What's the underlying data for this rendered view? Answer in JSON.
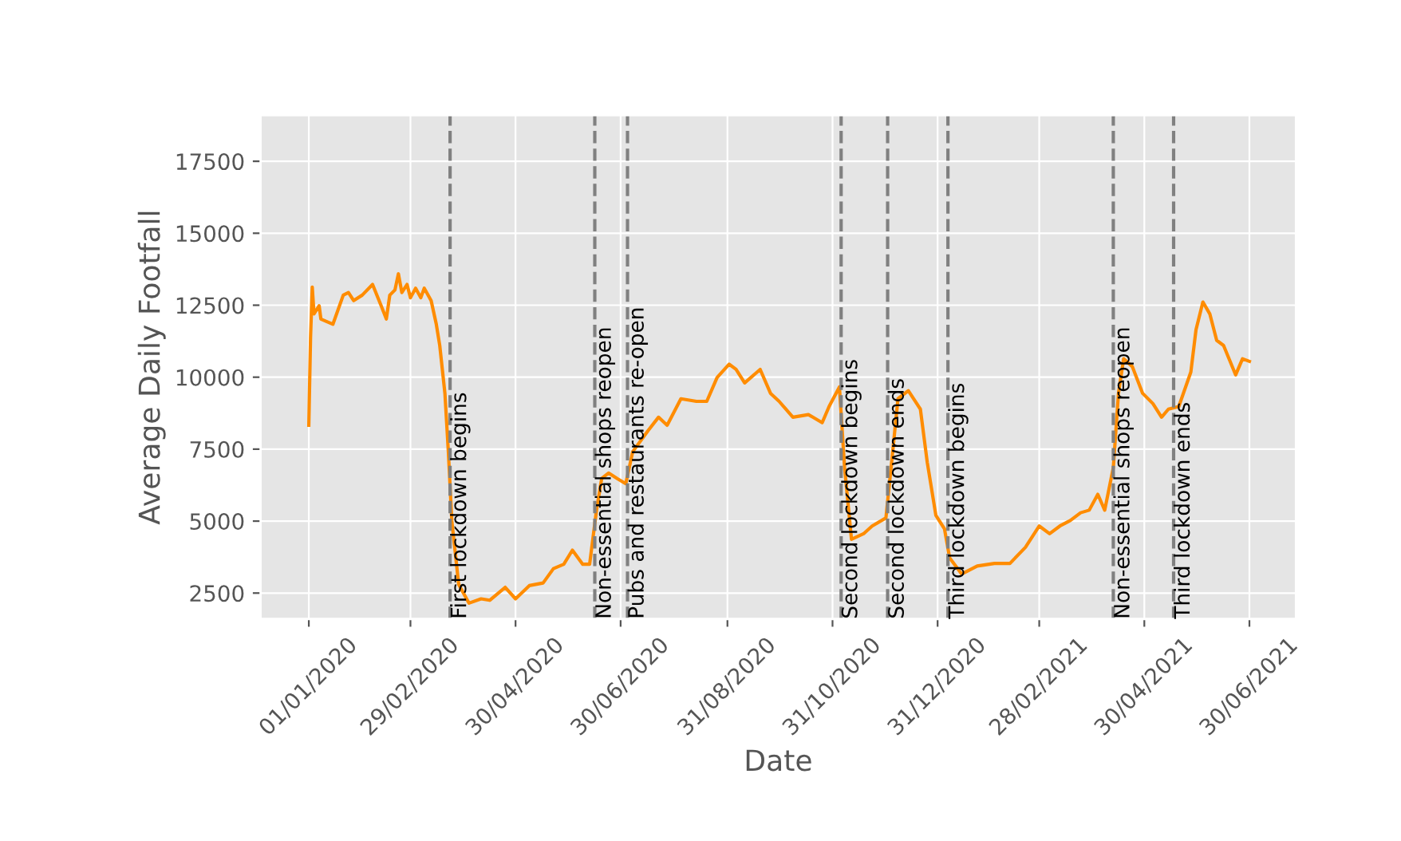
{
  "chart_data": {
    "type": "line",
    "xlabel": "Date",
    "ylabel": "Average Daily Footfall",
    "x": [
      "2020-01-01",
      "2020-01-02",
      "2020-01-03",
      "2020-01-04",
      "2020-01-07",
      "2020-01-08",
      "2020-01-15",
      "2020-01-21",
      "2020-01-24",
      "2020-01-27",
      "2020-02-01",
      "2020-02-07",
      "2020-02-12",
      "2020-02-15",
      "2020-02-17",
      "2020-02-20",
      "2020-02-22",
      "2020-02-24",
      "2020-02-27",
      "2020-02-29",
      "2020-03-03",
      "2020-03-06",
      "2020-03-08",
      "2020-03-12",
      "2020-03-15",
      "2020-03-17",
      "2020-03-20",
      "2020-03-22",
      "2020-03-24",
      "2020-03-28",
      "2020-04-03",
      "2020-04-10",
      "2020-04-15",
      "2020-04-24",
      "2020-04-30",
      "2020-05-08",
      "2020-05-16",
      "2020-05-22",
      "2020-05-28",
      "2020-06-02",
      "2020-06-08",
      "2020-06-12",
      "2020-06-16",
      "2020-06-19",
      "2020-06-23",
      "2020-06-28",
      "2020-07-03",
      "2020-07-07",
      "2020-07-16",
      "2020-07-22",
      "2020-07-27",
      "2020-08-04",
      "2020-08-13",
      "2020-08-19",
      "2020-08-25",
      "2020-09-01",
      "2020-09-05",
      "2020-09-10",
      "2020-09-19",
      "2020-09-25",
      "2020-09-30",
      "2020-10-08",
      "2020-10-17",
      "2020-10-25",
      "2020-10-29",
      "2020-11-04",
      "2020-11-07",
      "2020-11-11",
      "2020-11-18",
      "2020-11-23",
      "2020-12-01",
      "2020-12-04",
      "2020-12-08",
      "2020-12-14",
      "2020-12-21",
      "2020-12-25",
      "2020-12-30",
      "2021-01-04",
      "2021-01-07",
      "2021-01-14",
      "2021-01-23",
      "2021-02-02",
      "2021-02-11",
      "2021-02-20",
      "2021-02-28",
      "2021-03-06",
      "2021-03-12",
      "2021-03-18",
      "2021-03-24",
      "2021-03-29",
      "2021-04-03",
      "2021-04-07",
      "2021-04-12",
      "2021-04-15",
      "2021-04-18",
      "2021-04-23",
      "2021-04-29",
      "2021-05-05",
      "2021-05-10",
      "2021-05-14",
      "2021-05-20",
      "2021-05-27",
      "2021-05-30",
      "2021-06-03",
      "2021-06-07",
      "2021-06-11",
      "2021-06-15",
      "2021-06-22",
      "2021-06-26",
      "2021-06-30"
    ],
    "series": [
      {
        "color": "#ff8c00",
        "values": [
          8330,
          11370,
          13130,
          12200,
          12480,
          12020,
          11840,
          12850,
          12940,
          12660,
          12850,
          13220,
          12480,
          12020,
          12850,
          13030,
          13590,
          12940,
          13220,
          12760,
          13090,
          12760,
          13090,
          12660,
          11840,
          11100,
          9440,
          7410,
          5010,
          2800,
          2150,
          2300,
          2250,
          2700,
          2300,
          2760,
          2850,
          3350,
          3500,
          3990,
          3500,
          3500,
          5380,
          6480,
          6670,
          6480,
          6300,
          7410,
          8150,
          8610,
          8330,
          9250,
          9160,
          9160,
          9990,
          10450,
          10270,
          9800,
          10270,
          9440,
          9160,
          8610,
          8700,
          8420,
          8980,
          9660,
          6860,
          4370,
          4560,
          4830,
          5110,
          6860,
          9250,
          9530,
          8890,
          7040,
          5200,
          4730,
          3720,
          3160,
          3440,
          3530,
          3530,
          4090,
          4830,
          4560,
          4830,
          5020,
          5290,
          5380,
          5930,
          5380,
          6860,
          9440,
          10640,
          10370,
          9440,
          9080,
          8610,
          8890,
          8980,
          10180,
          11650,
          12610,
          12200,
          11280,
          11100,
          10080,
          10640,
          10550
        ]
      }
    ],
    "xlim": [
      "2019-12-04",
      "2021-07-27"
    ],
    "xticks": [
      {
        "value": "2020-01-01",
        "label": "01/01/2020"
      },
      {
        "value": "2020-02-29",
        "label": "29/02/2020"
      },
      {
        "value": "2020-04-30",
        "label": "30/04/2020"
      },
      {
        "value": "2020-06-30",
        "label": "30/06/2020"
      },
      {
        "value": "2020-08-31",
        "label": "31/08/2020"
      },
      {
        "value": "2020-10-31",
        "label": "31/10/2020"
      },
      {
        "value": "2020-12-31",
        "label": "31/12/2020"
      },
      {
        "value": "2021-02-28",
        "label": "28/02/2021"
      },
      {
        "value": "2021-04-30",
        "label": "30/04/2021"
      },
      {
        "value": "2021-06-30",
        "label": "30/06/2021"
      }
    ],
    "ylim": [
      1600,
      19100
    ],
    "yticks": [
      2500,
      5000,
      7500,
      10000,
      12500,
      15000,
      17500
    ],
    "grid": true,
    "marker": "none",
    "line_style": "solid",
    "ref_lines": [
      {
        "axis": "x",
        "value": "2020-03-23",
        "label": "First lockdown begins",
        "color": "#808080",
        "line_style": "dashed"
      },
      {
        "axis": "x",
        "value": "2020-06-15",
        "label": "Non-essential shops reopen",
        "color": "#808080",
        "line_style": "dashed"
      },
      {
        "axis": "x",
        "value": "2020-07-04",
        "label": "Pubs and restaurants re-open",
        "color": "#808080",
        "line_style": "dashed"
      },
      {
        "axis": "x",
        "value": "2020-11-05",
        "label": "Second lockdown begins",
        "color": "#808080",
        "line_style": "dashed"
      },
      {
        "axis": "x",
        "value": "2020-12-02",
        "label": "Second lockdown ends",
        "color": "#808080",
        "line_style": "dashed"
      },
      {
        "axis": "x",
        "value": "2021-01-06",
        "label": "Third lockdown begins",
        "color": "#808080",
        "line_style": "dashed"
      },
      {
        "axis": "x",
        "value": "2021-04-12",
        "label": "Non-essential shops reopen",
        "color": "#808080",
        "line_style": "dashed"
      },
      {
        "axis": "x",
        "value": "2021-05-17",
        "label": "Third lockdown ends",
        "color": "#808080",
        "line_style": "dashed"
      }
    ]
  }
}
